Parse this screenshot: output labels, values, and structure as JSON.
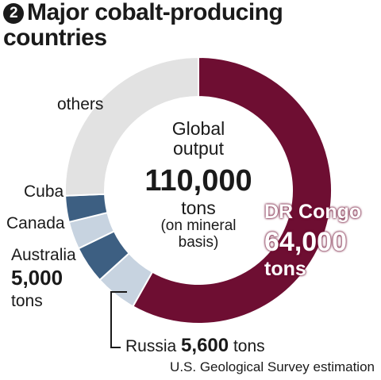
{
  "title": {
    "badge": "2",
    "line1": "Major cobalt-producing",
    "line2": "countries"
  },
  "center": {
    "line1": "Global",
    "line2": "output",
    "value": "110,000",
    "unit": "tons",
    "note1": "(on mineral",
    "note2": "basis)"
  },
  "source": "U.S. Geological Survey estimation",
  "labels": {
    "others": "others",
    "cuba": "Cuba",
    "canada": "Canada",
    "australia_name": "Australia",
    "australia_value": "5,000",
    "australia_unit": "tons",
    "russia_name": "Russia",
    "russia_value": "5,600",
    "russia_unit": "tons",
    "congo_name": "DR Congo",
    "congo_value": "64,000",
    "congo_unit": "tons"
  },
  "chart_data": {
    "type": "pie",
    "title": "Major cobalt-producing countries",
    "total": 110000,
    "unit": "tons",
    "start_angle_deg": 0,
    "direction": "clockwise",
    "slices": [
      {
        "name": "DR Congo",
        "value": 64000,
        "color": "#6e0e32"
      },
      {
        "name": "Russia",
        "value": 5600,
        "color": "#c7d3e0"
      },
      {
        "name": "Australia",
        "value": 5000,
        "color": "#3d5f82"
      },
      {
        "name": "Canada",
        "value": 3700,
        "color": "#c7d3e0"
      },
      {
        "name": "Cuba",
        "value": 3500,
        "color": "#3d5f82"
      },
      {
        "name": "others",
        "value": 28200,
        "color": "#e2e2e2"
      }
    ]
  }
}
